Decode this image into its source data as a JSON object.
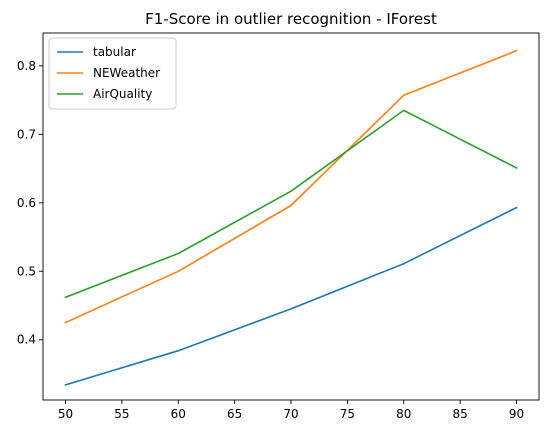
{
  "chart_data": {
    "type": "line",
    "title": "F1-Score in outlier recognition - IForest",
    "xlabel": "",
    "ylabel": "",
    "x": [
      50,
      60,
      70,
      80,
      90
    ],
    "xlim": [
      48,
      92
    ],
    "ylim": [
      0.312,
      0.848
    ],
    "xticks": [
      50,
      55,
      60,
      65,
      70,
      75,
      80,
      85,
      90
    ],
    "xtick_labels": [
      "50",
      "55",
      "60",
      "65",
      "70",
      "75",
      "80",
      "85",
      "90"
    ],
    "yticks": [
      0.4,
      0.5,
      0.6,
      0.7,
      0.8
    ],
    "ytick_labels": [
      "0.4",
      "0.5",
      "0.6",
      "0.7",
      "0.8"
    ],
    "grid": false,
    "legend_position": "upper-left",
    "series": [
      {
        "name": "tabular",
        "color": "#1f77b4",
        "values": [
          0.334,
          0.384,
          0.445,
          0.511,
          0.593
        ]
      },
      {
        "name": "NEWeather",
        "color": "#ff7f0e",
        "values": [
          0.425,
          0.5,
          0.596,
          0.757,
          0.822
        ]
      },
      {
        "name": "AirQuality",
        "color": "#2ca02c",
        "values": [
          0.462,
          0.526,
          0.617,
          0.735,
          0.651
        ]
      }
    ]
  }
}
